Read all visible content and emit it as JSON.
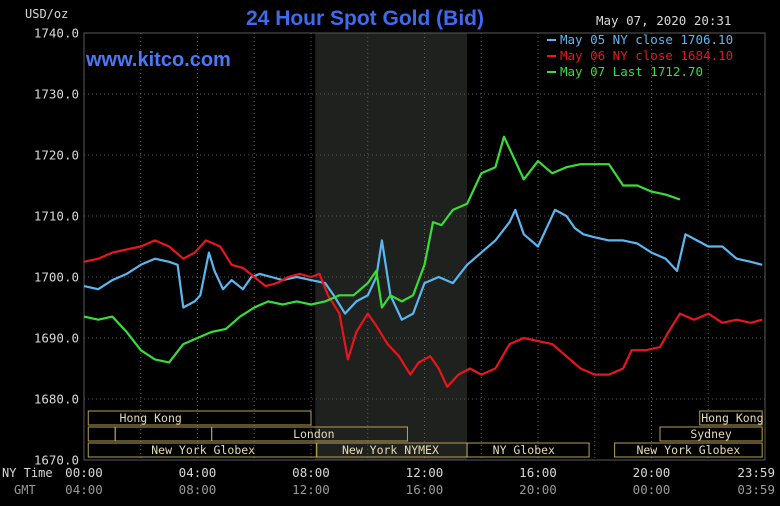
{
  "chart_data": {
    "type": "line",
    "title": "24 Hour Spot Gold (Bid)",
    "ylabel": "USD/oz",
    "timestamp": "May 07, 2020 20:31",
    "watermark": "www.kitco.com",
    "ylim": [
      1670,
      1740
    ],
    "yticks": [
      "1740.0",
      "1730.0",
      "1720.0",
      "1710.0",
      "1700.0",
      "1690.0",
      "1680.0",
      "1670.0"
    ],
    "xlim": [
      0,
      24
    ],
    "xaxis_labels": {
      "ny_label": "NY Time",
      "gmt_label": "GMT",
      "ny": [
        "00:00",
        "04:00",
        "08:00",
        "12:00",
        "16:00",
        "20:00",
        "23:59"
      ],
      "gmt": [
        "04:00",
        "08:00",
        "12:00",
        "16:00",
        "20:00",
        "00:00",
        "03:59"
      ]
    },
    "shaded_region": [
      8.15,
      13.5
    ],
    "grid": true,
    "legend_position": "top-right",
    "colors": {
      "background": "#000000",
      "grid": "#5a5a5a",
      "text": "#d8d8d8",
      "title": "#3f6bf0",
      "watermark": "#4b78f5",
      "shade": "#1f211f",
      "session_fill": "#fff3c8",
      "session_border": "#b8a058"
    },
    "series": [
      {
        "name": "May 05",
        "legend": "May 05 NY close 1706.10",
        "color": "#5ab7f0",
        "points": [
          [
            0,
            1698.5
          ],
          [
            0.5,
            1698
          ],
          [
            1,
            1699.5
          ],
          [
            1.5,
            1700.5
          ],
          [
            2,
            1702
          ],
          [
            2.5,
            1703
          ],
          [
            3,
            1702.5
          ],
          [
            3.3,
            1702
          ],
          [
            3.5,
            1695
          ],
          [
            3.9,
            1696
          ],
          [
            4.1,
            1697
          ],
          [
            4.4,
            1704
          ],
          [
            4.6,
            1701
          ],
          [
            4.9,
            1698
          ],
          [
            5.2,
            1699.5
          ],
          [
            5.6,
            1698
          ],
          [
            5.9,
            1700
          ],
          [
            6.2,
            1700.5
          ],
          [
            6.6,
            1700
          ],
          [
            7,
            1699.5
          ],
          [
            7.5,
            1700
          ],
          [
            8,
            1699.5
          ],
          [
            8.5,
            1699
          ],
          [
            8.8,
            1697
          ],
          [
            9.2,
            1694
          ],
          [
            9.6,
            1696
          ],
          [
            10,
            1697
          ],
          [
            10.3,
            1700
          ],
          [
            10.5,
            1706
          ],
          [
            10.8,
            1697
          ],
          [
            11.2,
            1693
          ],
          [
            11.6,
            1694
          ],
          [
            12,
            1699
          ],
          [
            12.5,
            1700
          ],
          [
            13,
            1699
          ],
          [
            13.5,
            1702
          ],
          [
            14,
            1704
          ],
          [
            14.5,
            1706
          ],
          [
            15,
            1709
          ],
          [
            15.2,
            1711
          ],
          [
            15.5,
            1707
          ],
          [
            16,
            1705
          ],
          [
            16.3,
            1708
          ],
          [
            16.6,
            1711
          ],
          [
            17,
            1710
          ],
          [
            17.3,
            1708
          ],
          [
            17.6,
            1707
          ],
          [
            18,
            1706.5
          ],
          [
            18.5,
            1706
          ],
          [
            19,
            1706
          ],
          [
            19.5,
            1705.5
          ],
          [
            20,
            1704
          ],
          [
            20.5,
            1703
          ],
          [
            20.9,
            1701
          ],
          [
            21.2,
            1707
          ],
          [
            21.6,
            1706
          ],
          [
            22,
            1705
          ],
          [
            22.5,
            1705
          ],
          [
            23,
            1703
          ],
          [
            23.5,
            1702.5
          ],
          [
            23.9,
            1702
          ]
        ]
      },
      {
        "name": "May 06",
        "legend": "May 06 NY close 1684.10",
        "color": "#e8161c",
        "points": [
          [
            0,
            1702.5
          ],
          [
            0.5,
            1703
          ],
          [
            1,
            1704
          ],
          [
            1.5,
            1704.5
          ],
          [
            2,
            1705
          ],
          [
            2.5,
            1706
          ],
          [
            3,
            1705
          ],
          [
            3.5,
            1703
          ],
          [
            3.9,
            1704
          ],
          [
            4.3,
            1706
          ],
          [
            4.8,
            1705
          ],
          [
            5.2,
            1702
          ],
          [
            5.6,
            1701.5
          ],
          [
            6,
            1700
          ],
          [
            6.4,
            1698.5
          ],
          [
            6.8,
            1699
          ],
          [
            7.2,
            1700
          ],
          [
            7.6,
            1700.5
          ],
          [
            8,
            1700
          ],
          [
            8.3,
            1700.5
          ],
          [
            8.6,
            1697
          ],
          [
            9,
            1694
          ],
          [
            9.3,
            1686.5
          ],
          [
            9.6,
            1691
          ],
          [
            10,
            1694
          ],
          [
            10.3,
            1692
          ],
          [
            10.7,
            1689
          ],
          [
            11.1,
            1687
          ],
          [
            11.5,
            1684
          ],
          [
            11.8,
            1686
          ],
          [
            12.2,
            1687
          ],
          [
            12.5,
            1685
          ],
          [
            12.8,
            1682
          ],
          [
            13.2,
            1684
          ],
          [
            13.6,
            1685
          ],
          [
            14,
            1684
          ],
          [
            14.5,
            1685
          ],
          [
            15,
            1689
          ],
          [
            15.5,
            1690
          ],
          [
            16,
            1689.5
          ],
          [
            16.5,
            1689
          ],
          [
            17,
            1687
          ],
          [
            17.5,
            1685
          ],
          [
            18,
            1684
          ],
          [
            18.5,
            1684
          ],
          [
            19,
            1685
          ],
          [
            19.3,
            1688
          ],
          [
            19.8,
            1688
          ],
          [
            20.3,
            1688.5
          ],
          [
            20.6,
            1691
          ],
          [
            21,
            1694
          ],
          [
            21.5,
            1693
          ],
          [
            22,
            1694
          ],
          [
            22.5,
            1692.5
          ],
          [
            23,
            1693
          ],
          [
            23.5,
            1692.5
          ],
          [
            23.9,
            1693
          ]
        ]
      },
      {
        "name": "May 07",
        "legend": "May 07 Last 1712.70",
        "color": "#38dd38",
        "points": [
          [
            0,
            1693.5
          ],
          [
            0.5,
            1693
          ],
          [
            1,
            1693.5
          ],
          [
            1.5,
            1691
          ],
          [
            2,
            1688
          ],
          [
            2.5,
            1686.5
          ],
          [
            3,
            1686
          ],
          [
            3.5,
            1689
          ],
          [
            4,
            1690
          ],
          [
            4.5,
            1691
          ],
          [
            5,
            1691.5
          ],
          [
            5.5,
            1693.5
          ],
          [
            6,
            1695
          ],
          [
            6.5,
            1696
          ],
          [
            7,
            1695.5
          ],
          [
            7.5,
            1696
          ],
          [
            8,
            1695.5
          ],
          [
            8.5,
            1696
          ],
          [
            9,
            1697
          ],
          [
            9.5,
            1697
          ],
          [
            10,
            1699
          ],
          [
            10.3,
            1701
          ],
          [
            10.5,
            1695
          ],
          [
            10.8,
            1697
          ],
          [
            11.2,
            1696
          ],
          [
            11.6,
            1697
          ],
          [
            12,
            1702
          ],
          [
            12.3,
            1709
          ],
          [
            12.6,
            1708.5
          ],
          [
            13,
            1711
          ],
          [
            13.5,
            1712
          ],
          [
            13.8,
            1715
          ],
          [
            14,
            1717
          ],
          [
            14.5,
            1718
          ],
          [
            14.8,
            1723
          ],
          [
            15.2,
            1719
          ],
          [
            15.5,
            1716
          ],
          [
            16,
            1719
          ],
          [
            16.5,
            1717
          ],
          [
            17,
            1718
          ],
          [
            17.5,
            1718.5
          ],
          [
            18,
            1718.5
          ],
          [
            18.5,
            1718.5
          ],
          [
            19,
            1715
          ],
          [
            19.5,
            1715
          ],
          [
            20,
            1714
          ],
          [
            20.5,
            1713.5
          ],
          [
            21,
            1712.7
          ]
        ]
      }
    ],
    "sessions": {
      "row1": [
        {
          "label": "Hong Kong",
          "start": 0.15,
          "end": 8.0,
          "labelPos": 2.35
        },
        {
          "label": "Hong Kong",
          "start": 21.7,
          "end": 23.9,
          "labelPos": 22.85
        }
      ],
      "row2": [
        {
          "label": "",
          "start": 0.15,
          "end": 1.1
        },
        {
          "label": "",
          "start": 1.1,
          "end": 4.5
        },
        {
          "label": "London",
          "start": 4.5,
          "end": 11.4,
          "labelPos": 8.1
        },
        {
          "label": "Sydney",
          "start": 20.3,
          "end": 23.9,
          "labelPos": 22.1
        }
      ],
      "row3": [
        {
          "label": "New York Globex",
          "start": 0.15,
          "end": 8.2,
          "labelPos": 4.2
        },
        {
          "label": "New York NYMEX",
          "start": 8.2,
          "end": 13.5,
          "labelPos": 10.8
        },
        {
          "label": "NY Globex",
          "start": 13.5,
          "end": 17.8,
          "labelPos": 15.5
        },
        {
          "label": "New York Globex",
          "start": 18.7,
          "end": 23.9,
          "labelPos": 21.3
        }
      ]
    }
  }
}
